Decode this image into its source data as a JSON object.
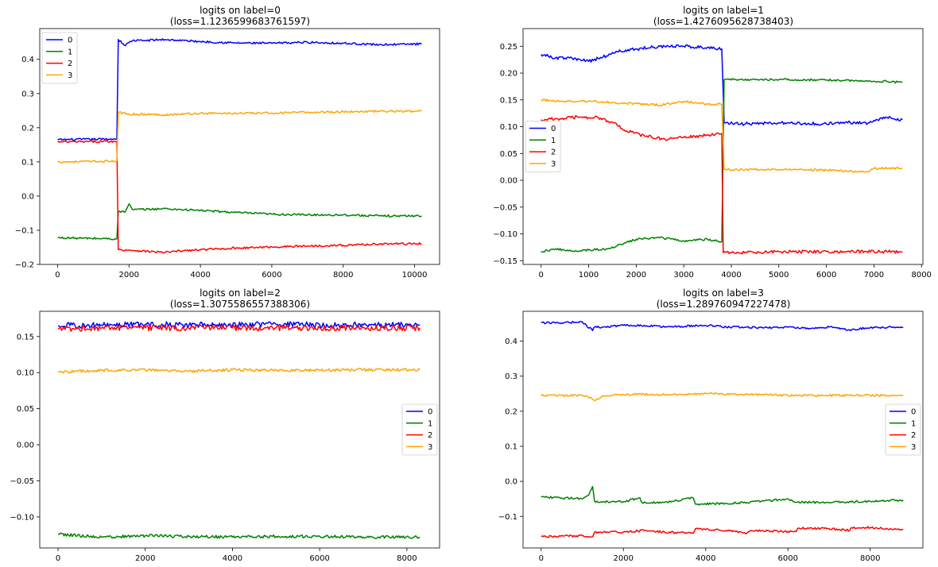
{
  "chart_data": [
    {
      "type": "line",
      "title_line1": "logits  on label=0",
      "title_line2": "(loss=1.1236599683761597)",
      "xlabel": "",
      "ylabel": "",
      "xlim": [
        -500,
        10700
      ],
      "ylim": [
        -0.2,
        0.49
      ],
      "xticks": [
        0,
        2000,
        4000,
        6000,
        8000,
        10000
      ],
      "yticks": [
        -0.2,
        -0.1,
        0.0,
        0.1,
        0.2,
        0.3,
        0.4
      ],
      "ytick_labels": [
        "−0.2",
        "−0.1",
        "0.0",
        "0.1",
        "0.2",
        "0.3",
        "0.4"
      ],
      "legend_loc": "upper-left",
      "grid": false,
      "series": [
        {
          "name": "0",
          "color": "#0000ff",
          "x": [
            0,
            1600,
            1660,
            1700,
            1900,
            2000,
            2100,
            2400,
            3000,
            4000,
            5000,
            6000,
            7000,
            8000,
            9000,
            10200
          ],
          "y": [
            0.165,
            0.167,
            0.167,
            0.458,
            0.44,
            0.45,
            0.455,
            0.455,
            0.458,
            0.452,
            0.448,
            0.447,
            0.45,
            0.447,
            0.443,
            0.445
          ],
          "jitter": 0.003
        },
        {
          "name": "1",
          "color": "#008000",
          "x": [
            0,
            1600,
            1660,
            1700,
            1900,
            2000,
            2100,
            3000,
            4000,
            5000,
            6000,
            7000,
            8000,
            9000,
            10200
          ],
          "y": [
            -0.122,
            -0.125,
            -0.125,
            -0.047,
            -0.045,
            -0.023,
            -0.04,
            -0.037,
            -0.042,
            -0.048,
            -0.053,
            -0.055,
            -0.055,
            -0.058,
            -0.058
          ],
          "jitter": 0.003
        },
        {
          "name": "2",
          "color": "#ff0000",
          "x": [
            0,
            1600,
            1660,
            1700,
            2000,
            3000,
            3500,
            4000,
            5000,
            6000,
            7000,
            8000,
            9000,
            10200
          ],
          "y": [
            0.158,
            0.16,
            0.16,
            -0.157,
            -0.158,
            -0.165,
            -0.16,
            -0.157,
            -0.152,
            -0.149,
            -0.146,
            -0.144,
            -0.14,
            -0.139
          ],
          "jitter": 0.003
        },
        {
          "name": "3",
          "color": "#ffa500",
          "x": [
            0,
            1600,
            1660,
            1700,
            2000,
            3000,
            4000,
            5000,
            6000,
            7000,
            8000,
            9000,
            10200
          ],
          "y": [
            0.1,
            0.102,
            0.102,
            0.245,
            0.24,
            0.238,
            0.242,
            0.242,
            0.243,
            0.245,
            0.247,
            0.248,
            0.248
          ],
          "jitter": 0.003
        }
      ]
    },
    {
      "type": "line",
      "title_line1": "logits  on label=1",
      "title_line2": "(loss=1.4276095628738403)",
      "xlabel": "",
      "ylabel": "",
      "xlim": [
        -380,
        8030
      ],
      "ylim": [
        -0.157,
        0.283
      ],
      "xticks": [
        0,
        1000,
        2000,
        3000,
        4000,
        5000,
        6000,
        7000,
        8000
      ],
      "yticks": [
        -0.15,
        -0.1,
        -0.05,
        0.0,
        0.05,
        0.1,
        0.15,
        0.2,
        0.25
      ],
      "ytick_labels": [
        "−0.15",
        "−0.10",
        "−0.05",
        "0.00",
        "0.05",
        "0.10",
        "0.15",
        "0.20",
        "0.25"
      ],
      "legend_loc": "center-left",
      "grid": false,
      "series": [
        {
          "name": "0",
          "color": "#0000ff",
          "x": [
            0,
            300,
            600,
            1000,
            1300,
            1600,
            2000,
            2500,
            3000,
            3500,
            3800,
            3850,
            4200,
            5000,
            6000,
            6500,
            6900,
            7200,
            7600
          ],
          "y": [
            0.235,
            0.228,
            0.228,
            0.222,
            0.23,
            0.24,
            0.245,
            0.25,
            0.25,
            0.248,
            0.245,
            0.107,
            0.105,
            0.107,
            0.105,
            0.108,
            0.107,
            0.118,
            0.113
          ],
          "jitter": 0.003
        },
        {
          "name": "1",
          "color": "#008000",
          "x": [
            0,
            300,
            700,
            1000,
            1400,
            1600,
            2000,
            2500,
            3000,
            3500,
            3800,
            3850,
            5000,
            6000,
            7000,
            7600
          ],
          "y": [
            -0.133,
            -0.128,
            -0.133,
            -0.13,
            -0.128,
            -0.122,
            -0.11,
            -0.107,
            -0.113,
            -0.11,
            -0.115,
            0.188,
            0.188,
            0.187,
            0.185,
            0.183
          ],
          "jitter": 0.002
        },
        {
          "name": "2",
          "color": "#ff0000",
          "x": [
            0,
            400,
            800,
            1200,
            1500,
            1800,
            2200,
            2600,
            3000,
            3500,
            3800,
            3830,
            4500,
            5000,
            6000,
            7000,
            7600
          ],
          "y": [
            0.113,
            0.115,
            0.118,
            0.117,
            0.108,
            0.092,
            0.082,
            0.077,
            0.08,
            0.084,
            0.087,
            -0.135,
            -0.135,
            -0.133,
            -0.133,
            -0.133,
            -0.133
          ],
          "jitter": 0.003
        },
        {
          "name": "3",
          "color": "#ffa500",
          "x": [
            0,
            500,
            1000,
            1500,
            2000,
            2500,
            3000,
            3500,
            3800,
            3850,
            4500,
            5000,
            6000,
            6800,
            7000,
            7600
          ],
          "y": [
            0.15,
            0.147,
            0.148,
            0.145,
            0.143,
            0.14,
            0.147,
            0.142,
            0.142,
            0.02,
            0.02,
            0.02,
            0.019,
            0.015,
            0.022,
            0.023
          ],
          "jitter": 0.002
        }
      ]
    },
    {
      "type": "line",
      "title_line1": "logits  on label=2",
      "title_line2": "(loss=1.3075586557388306)",
      "xlabel": "",
      "ylabel": "",
      "xlim": [
        -420,
        8750
      ],
      "ylim": [
        -0.143,
        0.185
      ],
      "xticks": [
        0,
        2000,
        4000,
        6000,
        8000
      ],
      "yticks": [
        -0.1,
        -0.05,
        0.0,
        0.05,
        0.1,
        0.15
      ],
      "ytick_labels": [
        "−0.10",
        "−0.05",
        "0.00",
        "0.05",
        "0.10",
        "0.15"
      ],
      "legend_loc": "center-right",
      "grid": false,
      "series": [
        {
          "name": "0",
          "color": "#0000ff",
          "x": [
            0,
            1000,
            2000,
            3000,
            4000,
            5000,
            6000,
            7000,
            8300
          ],
          "y": [
            0.165,
            0.166,
            0.167,
            0.166,
            0.166,
            0.167,
            0.166,
            0.166,
            0.166
          ],
          "jitter": 0.004
        },
        {
          "name": "1",
          "color": "#008000",
          "x": [
            0,
            1000,
            2000,
            3000,
            4000,
            5000,
            6000,
            7000,
            8300
          ],
          "y": [
            -0.124,
            -0.128,
            -0.126,
            -0.127,
            -0.128,
            -0.127,
            -0.127,
            -0.128,
            -0.128
          ],
          "jitter": 0.002
        },
        {
          "name": "2",
          "color": "#ff0000",
          "x": [
            0,
            1000,
            2000,
            3000,
            4000,
            5000,
            6000,
            7000,
            8300
          ],
          "y": [
            0.161,
            0.162,
            0.162,
            0.162,
            0.162,
            0.162,
            0.162,
            0.162,
            0.162
          ],
          "jitter": 0.004
        },
        {
          "name": "3",
          "color": "#ffa500",
          "x": [
            0,
            1000,
            2000,
            3000,
            4000,
            5000,
            6000,
            7000,
            8300
          ],
          "y": [
            0.101,
            0.103,
            0.104,
            0.102,
            0.104,
            0.103,
            0.103,
            0.104,
            0.104
          ],
          "jitter": 0.002
        }
      ]
    },
    {
      "type": "line",
      "title_line1": "logits  on label=3",
      "title_line2": "(loss=1.289760947227478)",
      "xlabel": "",
      "ylabel": "",
      "xlim": [
        -440,
        9280
      ],
      "ylim": [
        -0.19,
        0.485
      ],
      "xticks": [
        0,
        2000,
        4000,
        6000,
        8000
      ],
      "yticks": [
        -0.1,
        0.0,
        0.1,
        0.2,
        0.3,
        0.4
      ],
      "ytick_labels": [
        "−0.1",
        "0.0",
        "0.1",
        "0.2",
        "0.3",
        "0.4"
      ],
      "legend_loc": "center-right",
      "grid": false,
      "series": [
        {
          "name": "0",
          "color": "#0000ff",
          "x": [
            0,
            500,
            1000,
            1100,
            1250,
            1300,
            1500,
            2000,
            2500,
            3000,
            3500,
            4000,
            4500,
            5000,
            5500,
            6000,
            6500,
            7000,
            7500,
            8000,
            8800
          ],
          "y": [
            0.452,
            0.452,
            0.455,
            0.445,
            0.43,
            0.44,
            0.44,
            0.445,
            0.445,
            0.44,
            0.442,
            0.445,
            0.44,
            0.44,
            0.438,
            0.44,
            0.435,
            0.44,
            0.432,
            0.438,
            0.44
          ],
          "jitter": 0.003
        },
        {
          "name": "1",
          "color": "#008000",
          "x": [
            0,
            500,
            1000,
            1150,
            1250,
            1300,
            1500,
            2000,
            2400,
            2450,
            3000,
            3700,
            3750,
            4500,
            5000,
            6000,
            6200,
            7000,
            8000,
            8800
          ],
          "y": [
            -0.045,
            -0.047,
            -0.05,
            -0.04,
            -0.015,
            -0.057,
            -0.058,
            -0.058,
            -0.047,
            -0.06,
            -0.06,
            -0.048,
            -0.065,
            -0.063,
            -0.06,
            -0.05,
            -0.06,
            -0.06,
            -0.057,
            -0.053
          ],
          "jitter": 0.003
        },
        {
          "name": "2",
          "color": "#ff0000",
          "x": [
            0,
            1000,
            1250,
            1300,
            2000,
            2500,
            2550,
            3000,
            3700,
            3750,
            4000,
            4500,
            5000,
            5100,
            5800,
            6200,
            6250,
            7000,
            7500,
            7550,
            8000,
            8800
          ],
          "y": [
            -0.158,
            -0.155,
            -0.158,
            -0.145,
            -0.145,
            -0.14,
            -0.14,
            -0.145,
            -0.148,
            -0.135,
            -0.138,
            -0.14,
            -0.148,
            -0.14,
            -0.143,
            -0.143,
            -0.133,
            -0.135,
            -0.14,
            -0.132,
            -0.132,
            -0.138
          ],
          "jitter": 0.003
        },
        {
          "name": "3",
          "color": "#ffa500",
          "x": [
            0,
            500,
            1000,
            1200,
            1300,
            1500,
            2000,
            3000,
            4000,
            5000,
            6000,
            7000,
            8000,
            8800
          ],
          "y": [
            0.245,
            0.245,
            0.245,
            0.24,
            0.23,
            0.245,
            0.248,
            0.248,
            0.25,
            0.248,
            0.245,
            0.245,
            0.245,
            0.245
          ],
          "jitter": 0.003
        }
      ]
    }
  ]
}
